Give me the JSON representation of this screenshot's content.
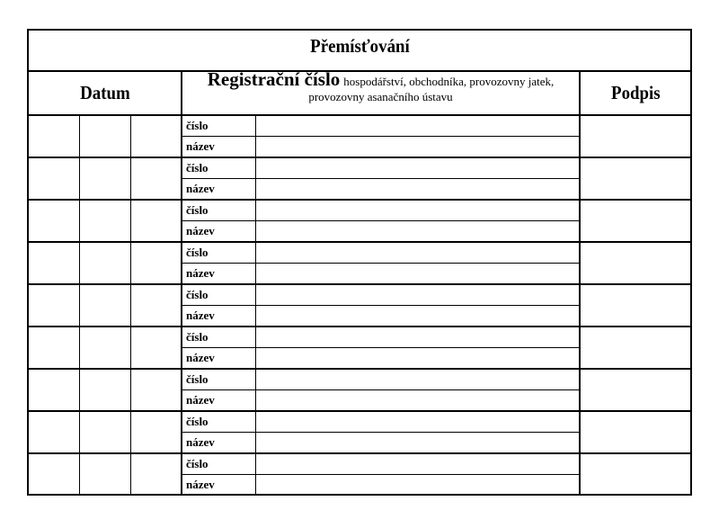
{
  "title": "Přemísťování",
  "header": {
    "datum": "Datum",
    "reg_main": "Registrační číslo",
    "reg_sub": "hospodářství, obchodníka, provozovny jatek, provozovny asanačního ústavu",
    "podpis": "Podpis"
  },
  "rows": [
    {
      "number_label": "číslo",
      "name_label": "název"
    },
    {
      "number_label": "číslo",
      "name_label": "název"
    },
    {
      "number_label": "číslo",
      "name_label": "název"
    },
    {
      "number_label": "číslo",
      "name_label": "název"
    },
    {
      "number_label": "číslo",
      "name_label": "název"
    },
    {
      "number_label": "číslo",
      "name_label": "název"
    },
    {
      "number_label": "číslo",
      "name_label": "název"
    },
    {
      "number_label": "číslo",
      "name_label": "název"
    },
    {
      "number_label": "číslo",
      "name_label": "název"
    }
  ]
}
